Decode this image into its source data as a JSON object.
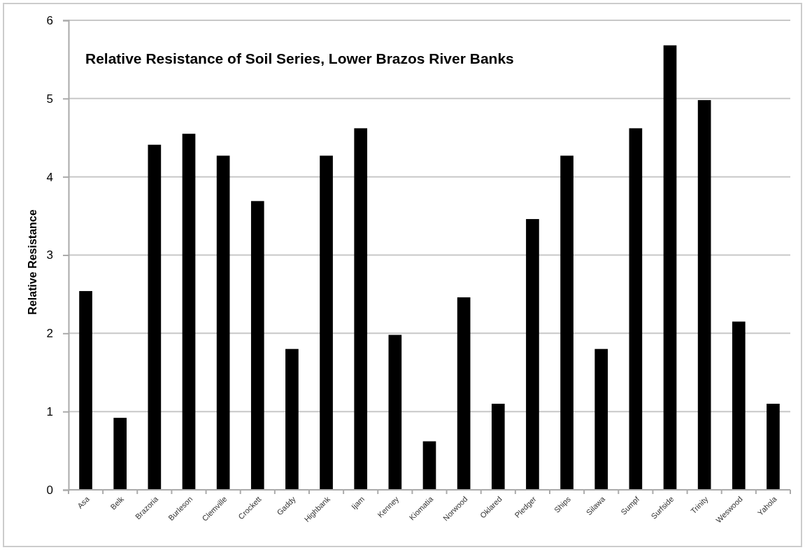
{
  "chart_data": {
    "type": "bar",
    "title": "Relative Resistance of Soil Series, Lower Brazos River Banks",
    "ylabel": "Relative Resistance",
    "categories": [
      "Asa",
      "Belk",
      "Brazoria",
      "Burleson",
      "Clemville",
      "Crockett",
      "Gaddy",
      "Highbank",
      "Ijam",
      "Kenney",
      "Kiomatia",
      "Norwood",
      "Oklared",
      "Pledger",
      "Ships",
      "Silawa",
      "Sumpf",
      "Surfside",
      "Trinity",
      "Weswood",
      "Yahola"
    ],
    "values": [
      2.54,
      0.92,
      4.41,
      4.55,
      4.27,
      3.69,
      1.8,
      4.27,
      4.62,
      1.98,
      0.62,
      2.46,
      1.1,
      3.46,
      4.27,
      1.8,
      4.62,
      5.68,
      4.98,
      2.15,
      1.1
    ],
    "color": "#000000",
    "ylim": [
      0,
      6
    ],
    "yticks": [
      0,
      1,
      2,
      3,
      4,
      5,
      6
    ],
    "grid": "y"
  }
}
